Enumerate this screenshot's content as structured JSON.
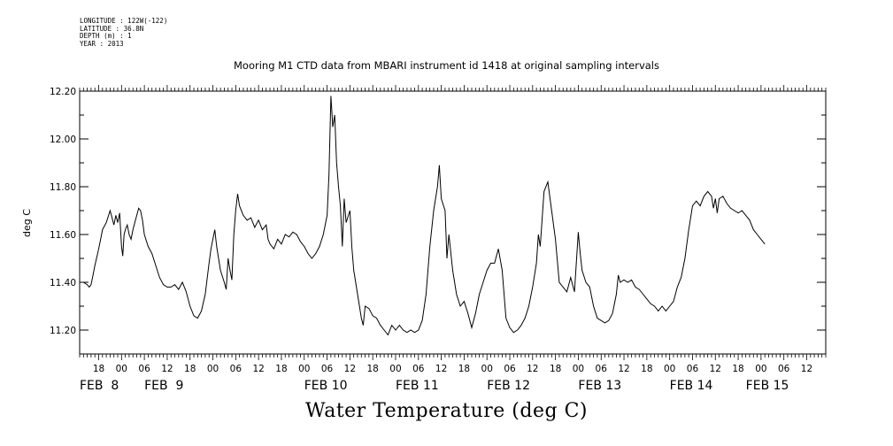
{
  "meta_lines": {
    "longitude": "LONGITUDE : 122W(-122)",
    "latitude": "LATITUDE : 36.8N",
    "depth": "DEPTH (m) : 1",
    "year": "YEAR : 2013"
  },
  "chart_data": {
    "type": "line",
    "title": "Mooring M1 CTD data from MBARI instrument id 1418 at original sampling intervals",
    "xlabel": "Water Temperature (deg C)",
    "ylabel": "deg C",
    "ylim": [
      11.1,
      12.2
    ],
    "xlim": [
      "2013-02-07T13:00",
      "2013-02-15T17:00"
    ],
    "y_ticks": [
      "11.20",
      "11.40",
      "11.60",
      "11.80",
      "12.00",
      "12.20"
    ],
    "x_hour_ticks": [
      {
        "t": "2013-02-07T18:00",
        "label": "18"
      },
      {
        "t": "2013-02-08T00:00",
        "label": "00"
      },
      {
        "t": "2013-02-08T06:00",
        "label": "06"
      },
      {
        "t": "2013-02-08T12:00",
        "label": "12"
      },
      {
        "t": "2013-02-08T18:00",
        "label": "18"
      },
      {
        "t": "2013-02-09T00:00",
        "label": "00"
      },
      {
        "t": "2013-02-09T06:00",
        "label": "06"
      },
      {
        "t": "2013-02-09T12:00",
        "label": "12"
      },
      {
        "t": "2013-02-09T18:00",
        "label": "18"
      },
      {
        "t": "2013-02-10T00:00",
        "label": "00"
      },
      {
        "t": "2013-02-10T06:00",
        "label": "06"
      },
      {
        "t": "2013-02-10T12:00",
        "label": "12"
      },
      {
        "t": "2013-02-10T18:00",
        "label": "18"
      },
      {
        "t": "2013-02-11T00:00",
        "label": "00"
      },
      {
        "t": "2013-02-11T06:00",
        "label": "06"
      },
      {
        "t": "2013-02-11T12:00",
        "label": "12"
      },
      {
        "t": "2013-02-11T18:00",
        "label": "18"
      },
      {
        "t": "2013-02-12T00:00",
        "label": "00"
      },
      {
        "t": "2013-02-12T06:00",
        "label": "06"
      },
      {
        "t": "2013-02-12T12:00",
        "label": "12"
      },
      {
        "t": "2013-02-12T18:00",
        "label": "18"
      },
      {
        "t": "2013-02-13T00:00",
        "label": "00"
      },
      {
        "t": "2013-02-13T06:00",
        "label": "06"
      },
      {
        "t": "2013-02-13T12:00",
        "label": "12"
      },
      {
        "t": "2013-02-13T18:00",
        "label": "18"
      },
      {
        "t": "2013-02-14T00:00",
        "label": "00"
      },
      {
        "t": "2013-02-14T06:00",
        "label": "06"
      },
      {
        "t": "2013-02-14T12:00",
        "label": "12"
      },
      {
        "t": "2013-02-14T18:00",
        "label": "18"
      },
      {
        "t": "2013-02-15T00:00",
        "label": "00"
      },
      {
        "t": "2013-02-15T06:00",
        "label": "06"
      },
      {
        "t": "2013-02-15T12:00",
        "label": "12"
      }
    ],
    "x_day_labels": [
      {
        "t": "2013-02-07T13:00",
        "label": "FEB  8"
      },
      {
        "t": "2013-02-08T06:00",
        "label": "FEB  9"
      },
      {
        "t": "2013-02-10T00:00",
        "label": "FEB 10"
      },
      {
        "t": "2013-02-11T00:00",
        "label": "FEB 11"
      },
      {
        "t": "2013-02-12T00:00",
        "label": "FEB 12"
      },
      {
        "t": "2013-02-13T00:00",
        "label": "FEB 13"
      },
      {
        "t": "2013-02-14T00:00",
        "label": "FEB 14"
      },
      {
        "t": "2013-02-14T20:00",
        "label": "FEB 15"
      }
    ],
    "series": [
      {
        "color": "#000000",
        "points": [
          [
            "2013-02-07T13:00",
            11.4
          ],
          [
            "2013-02-07T14:00",
            11.4
          ],
          [
            "2013-02-07T15:00",
            11.39
          ],
          [
            "2013-02-07T15:30",
            11.38
          ],
          [
            "2013-02-07T16:00",
            11.39
          ],
          [
            "2013-02-07T16:30",
            11.43
          ],
          [
            "2013-02-07T17:00",
            11.47
          ],
          [
            "2013-02-07T18:00",
            11.54
          ],
          [
            "2013-02-07T18:30",
            11.58
          ],
          [
            "2013-02-07T19:00",
            11.62
          ],
          [
            "2013-02-07T20:00",
            11.65
          ],
          [
            "2013-02-07T21:00",
            11.7
          ],
          [
            "2013-02-07T21:30",
            11.67
          ],
          [
            "2013-02-07T22:00",
            11.64
          ],
          [
            "2013-02-07T22:30",
            11.68
          ],
          [
            "2013-02-07T23:00",
            11.65
          ],
          [
            "2013-02-07T23:30",
            11.69
          ],
          [
            "2013-02-08T00:00",
            11.55
          ],
          [
            "2013-02-08T00:20",
            11.51
          ],
          [
            "2013-02-08T00:40",
            11.6
          ],
          [
            "2013-02-08T01:00",
            11.62
          ],
          [
            "2013-02-08T01:30",
            11.64
          ],
          [
            "2013-02-08T02:00",
            11.6
          ],
          [
            "2013-02-08T02:30",
            11.58
          ],
          [
            "2013-02-08T03:00",
            11.62
          ],
          [
            "2013-02-08T04:00",
            11.68
          ],
          [
            "2013-02-08T04:30",
            11.71
          ],
          [
            "2013-02-08T05:00",
            11.7
          ],
          [
            "2013-02-08T05:30",
            11.66
          ],
          [
            "2013-02-08T06:00",
            11.6
          ],
          [
            "2013-02-08T07:00",
            11.55
          ],
          [
            "2013-02-08T08:00",
            11.52
          ],
          [
            "2013-02-08T09:00",
            11.47
          ],
          [
            "2013-02-08T10:00",
            11.42
          ],
          [
            "2013-02-08T11:00",
            11.39
          ],
          [
            "2013-02-08T12:00",
            11.38
          ],
          [
            "2013-02-08T13:00",
            11.38
          ],
          [
            "2013-02-08T14:00",
            11.39
          ],
          [
            "2013-02-08T15:00",
            11.37
          ],
          [
            "2013-02-08T16:00",
            11.4
          ],
          [
            "2013-02-08T17:00",
            11.36
          ],
          [
            "2013-02-08T18:00",
            11.3
          ],
          [
            "2013-02-08T19:00",
            11.26
          ],
          [
            "2013-02-08T20:00",
            11.25
          ],
          [
            "2013-02-08T21:00",
            11.28
          ],
          [
            "2013-02-08T22:00",
            11.35
          ],
          [
            "2013-02-08T23:00",
            11.48
          ],
          [
            "2013-02-08T23:30",
            11.54
          ],
          [
            "2013-02-09T00:00",
            11.58
          ],
          [
            "2013-02-09T00:30",
            11.62
          ],
          [
            "2013-02-09T01:00",
            11.55
          ],
          [
            "2013-02-09T02:00",
            11.45
          ],
          [
            "2013-02-09T03:00",
            11.4
          ],
          [
            "2013-02-09T03:30",
            11.37
          ],
          [
            "2013-02-09T04:00",
            11.5
          ],
          [
            "2013-02-09T04:30",
            11.45
          ],
          [
            "2013-02-09T05:00",
            11.41
          ],
          [
            "2013-02-09T05:30",
            11.6
          ],
          [
            "2013-02-09T06:00",
            11.7
          ],
          [
            "2013-02-09T06:30",
            11.77
          ],
          [
            "2013-02-09T07:00",
            11.72
          ],
          [
            "2013-02-09T08:00",
            11.68
          ],
          [
            "2013-02-09T09:00",
            11.66
          ],
          [
            "2013-02-09T10:00",
            11.67
          ],
          [
            "2013-02-09T11:00",
            11.63
          ],
          [
            "2013-02-09T12:00",
            11.66
          ],
          [
            "2013-02-09T13:00",
            11.62
          ],
          [
            "2013-02-09T14:00",
            11.64
          ],
          [
            "2013-02-09T14:30",
            11.58
          ],
          [
            "2013-02-09T15:00",
            11.56
          ],
          [
            "2013-02-09T16:00",
            11.54
          ],
          [
            "2013-02-09T17:00",
            11.58
          ],
          [
            "2013-02-09T18:00",
            11.56
          ],
          [
            "2013-02-09T19:00",
            11.6
          ],
          [
            "2013-02-09T20:00",
            11.59
          ],
          [
            "2013-02-09T21:00",
            11.61
          ],
          [
            "2013-02-09T22:00",
            11.6
          ],
          [
            "2013-02-09T23:00",
            11.57
          ],
          [
            "2013-02-10T00:00",
            11.55
          ],
          [
            "2013-02-10T01:00",
            11.52
          ],
          [
            "2013-02-10T02:00",
            11.5
          ],
          [
            "2013-02-10T03:00",
            11.52
          ],
          [
            "2013-02-10T04:00",
            11.55
          ],
          [
            "2013-02-10T05:00",
            11.6
          ],
          [
            "2013-02-10T06:00",
            11.68
          ],
          [
            "2013-02-10T06:30",
            11.85
          ],
          [
            "2013-02-10T07:00",
            12.18
          ],
          [
            "2013-02-10T07:30",
            12.05
          ],
          [
            "2013-02-10T08:00",
            12.1
          ],
          [
            "2013-02-10T08:30",
            11.9
          ],
          [
            "2013-02-10T09:00",
            11.8
          ],
          [
            "2013-02-10T09:30",
            11.72
          ],
          [
            "2013-02-10T10:00",
            11.55
          ],
          [
            "2013-02-10T10:30",
            11.75
          ],
          [
            "2013-02-10T11:00",
            11.65
          ],
          [
            "2013-02-10T12:00",
            11.7
          ],
          [
            "2013-02-10T12:30",
            11.55
          ],
          [
            "2013-02-10T13:00",
            11.45
          ],
          [
            "2013-02-10T14:00",
            11.35
          ],
          [
            "2013-02-10T15:00",
            11.25
          ],
          [
            "2013-02-10T15:30",
            11.22
          ],
          [
            "2013-02-10T16:00",
            11.3
          ],
          [
            "2013-02-10T17:00",
            11.29
          ],
          [
            "2013-02-10T18:00",
            11.26
          ],
          [
            "2013-02-10T19:00",
            11.25
          ],
          [
            "2013-02-10T20:00",
            11.22
          ],
          [
            "2013-02-10T21:00",
            11.2
          ],
          [
            "2013-02-10T22:00",
            11.18
          ],
          [
            "2013-02-10T23:00",
            11.22
          ],
          [
            "2013-02-11T00:00",
            11.2
          ],
          [
            "2013-02-11T01:00",
            11.22
          ],
          [
            "2013-02-11T02:00",
            11.2
          ],
          [
            "2013-02-11T03:00",
            11.19
          ],
          [
            "2013-02-11T04:00",
            11.2
          ],
          [
            "2013-02-11T05:00",
            11.19
          ],
          [
            "2013-02-11T06:00",
            11.2
          ],
          [
            "2013-02-11T07:00",
            11.24
          ],
          [
            "2013-02-11T08:00",
            11.35
          ],
          [
            "2013-02-11T09:00",
            11.55
          ],
          [
            "2013-02-11T10:00",
            11.7
          ],
          [
            "2013-02-11T11:00",
            11.8
          ],
          [
            "2013-02-11T11:30",
            11.89
          ],
          [
            "2013-02-11T12:00",
            11.75
          ],
          [
            "2013-02-11T13:00",
            11.7
          ],
          [
            "2013-02-11T13:30",
            11.5
          ],
          [
            "2013-02-11T14:00",
            11.6
          ],
          [
            "2013-02-11T15:00",
            11.45
          ],
          [
            "2013-02-11T16:00",
            11.35
          ],
          [
            "2013-02-11T17:00",
            11.3
          ],
          [
            "2013-02-11T18:00",
            11.32
          ],
          [
            "2013-02-11T19:00",
            11.27
          ],
          [
            "2013-02-11T20:00",
            11.21
          ],
          [
            "2013-02-11T21:00",
            11.27
          ],
          [
            "2013-02-11T22:00",
            11.35
          ],
          [
            "2013-02-11T23:00",
            11.4
          ],
          [
            "2013-02-12T00:00",
            11.45
          ],
          [
            "2013-02-12T01:00",
            11.48
          ],
          [
            "2013-02-12T02:00",
            11.48
          ],
          [
            "2013-02-12T03:00",
            11.54
          ],
          [
            "2013-02-12T04:00",
            11.45
          ],
          [
            "2013-02-12T05:00",
            11.25
          ],
          [
            "2013-02-12T06:00",
            11.21
          ],
          [
            "2013-02-12T07:00",
            11.19
          ],
          [
            "2013-02-12T08:00",
            11.2
          ],
          [
            "2013-02-12T09:00",
            11.22
          ],
          [
            "2013-02-12T10:00",
            11.25
          ],
          [
            "2013-02-12T11:00",
            11.3
          ],
          [
            "2013-02-12T12:00",
            11.38
          ],
          [
            "2013-02-12T13:00",
            11.48
          ],
          [
            "2013-02-12T13:30",
            11.6
          ],
          [
            "2013-02-12T14:00",
            11.55
          ],
          [
            "2013-02-12T15:00",
            11.78
          ],
          [
            "2013-02-12T16:00",
            11.82
          ],
          [
            "2013-02-12T17:00",
            11.7
          ],
          [
            "2013-02-12T18:00",
            11.58
          ],
          [
            "2013-02-12T19:00",
            11.4
          ],
          [
            "2013-02-12T20:00",
            11.38
          ],
          [
            "2013-02-12T21:00",
            11.36
          ],
          [
            "2013-02-12T22:00",
            11.42
          ],
          [
            "2013-02-12T23:00",
            11.36
          ],
          [
            "2013-02-13T00:00",
            11.61
          ],
          [
            "2013-02-13T00:30",
            11.52
          ],
          [
            "2013-02-13T01:00",
            11.45
          ],
          [
            "2013-02-13T02:00",
            11.4
          ],
          [
            "2013-02-13T03:00",
            11.38
          ],
          [
            "2013-02-13T04:00",
            11.3
          ],
          [
            "2013-02-13T05:00",
            11.25
          ],
          [
            "2013-02-13T06:00",
            11.24
          ],
          [
            "2013-02-13T07:00",
            11.23
          ],
          [
            "2013-02-13T08:00",
            11.24
          ],
          [
            "2013-02-13T09:00",
            11.27
          ],
          [
            "2013-02-13T10:00",
            11.35
          ],
          [
            "2013-02-13T10:30",
            11.43
          ],
          [
            "2013-02-13T11:00",
            11.4
          ],
          [
            "2013-02-13T12:00",
            11.41
          ],
          [
            "2013-02-13T13:00",
            11.4
          ],
          [
            "2013-02-13T14:00",
            11.41
          ],
          [
            "2013-02-13T15:00",
            11.38
          ],
          [
            "2013-02-13T16:00",
            11.37
          ],
          [
            "2013-02-13T17:00",
            11.35
          ],
          [
            "2013-02-13T18:00",
            11.33
          ],
          [
            "2013-02-13T19:00",
            11.31
          ],
          [
            "2013-02-13T20:00",
            11.3
          ],
          [
            "2013-02-13T21:00",
            11.28
          ],
          [
            "2013-02-13T22:00",
            11.3
          ],
          [
            "2013-02-13T23:00",
            11.28
          ],
          [
            "2013-02-14T00:00",
            11.3
          ],
          [
            "2013-02-14T01:00",
            11.32
          ],
          [
            "2013-02-14T02:00",
            11.38
          ],
          [
            "2013-02-14T03:00",
            11.42
          ],
          [
            "2013-02-14T04:00",
            11.5
          ],
          [
            "2013-02-14T05:00",
            11.62
          ],
          [
            "2013-02-14T06:00",
            11.72
          ],
          [
            "2013-02-14T07:00",
            11.74
          ],
          [
            "2013-02-14T08:00",
            11.72
          ],
          [
            "2013-02-14T09:00",
            11.76
          ],
          [
            "2013-02-14T10:00",
            11.78
          ],
          [
            "2013-02-14T11:00",
            11.76
          ],
          [
            "2013-02-14T11:30",
            11.71
          ],
          [
            "2013-02-14T12:00",
            11.75
          ],
          [
            "2013-02-14T12:30",
            11.69
          ],
          [
            "2013-02-14T13:00",
            11.75
          ],
          [
            "2013-02-14T14:00",
            11.76
          ],
          [
            "2013-02-14T15:00",
            11.73
          ],
          [
            "2013-02-14T16:00",
            11.71
          ],
          [
            "2013-02-14T17:00",
            11.7
          ],
          [
            "2013-02-14T18:00",
            11.69
          ],
          [
            "2013-02-14T19:00",
            11.7
          ],
          [
            "2013-02-14T20:00",
            11.68
          ],
          [
            "2013-02-14T21:00",
            11.66
          ],
          [
            "2013-02-14T22:00",
            11.62
          ],
          [
            "2013-02-14T23:00",
            11.6
          ],
          [
            "2013-02-15T00:00",
            11.58
          ],
          [
            "2013-02-15T01:00",
            11.56
          ]
        ]
      }
    ]
  }
}
